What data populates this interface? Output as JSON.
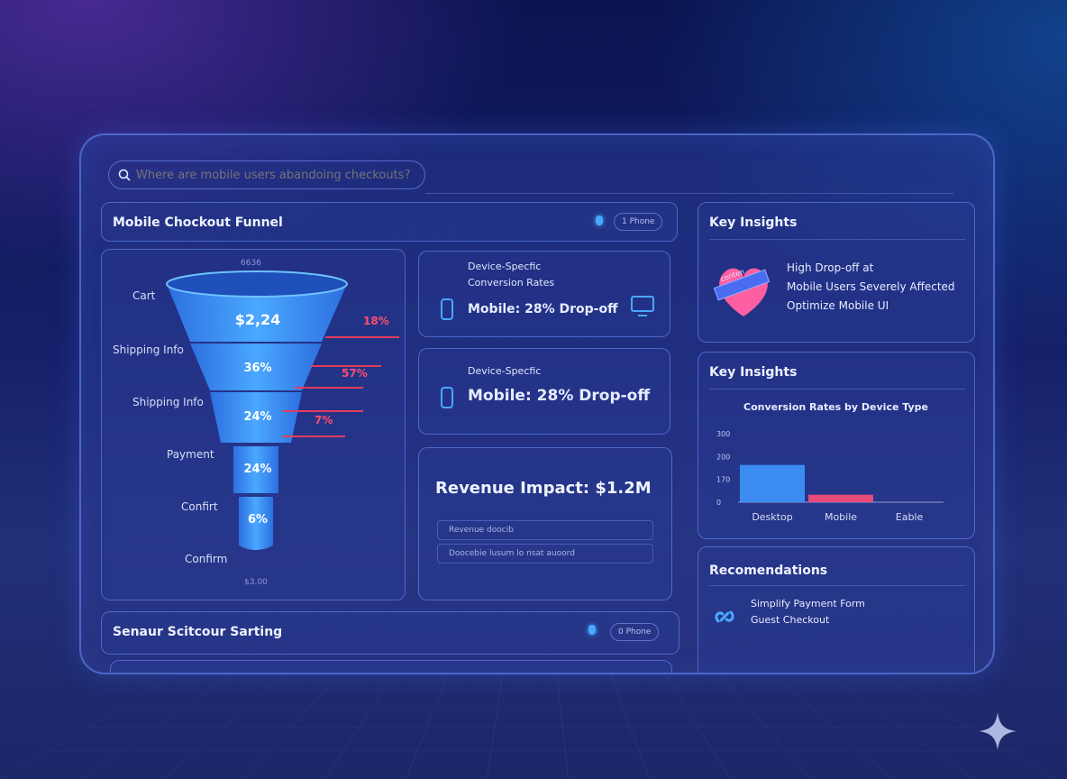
{
  "search": {
    "placeholder": "Where are mobile users abandoing checkouts?"
  },
  "funnel_panel": {
    "title": "Mobile Chockout Funnel",
    "chip": "1 Phone",
    "top_value": "6636",
    "bottom_value": "$3.00",
    "stages": [
      {
        "label": "Cart",
        "value": "$2,24",
        "drop": "18%"
      },
      {
        "label": "Shipping Info",
        "value": "36%",
        "drop": "57%"
      },
      {
        "label": "Shipping Info",
        "value": "24%",
        "drop": "7%"
      },
      {
        "label": "Payment",
        "value": "24%"
      },
      {
        "label": "Confirt",
        "value": "6%"
      },
      {
        "label": "Confirm"
      }
    ]
  },
  "device_card_1": {
    "title_line1": "Device-Specfic",
    "title_line2": "Conversion Rates",
    "stat": "Mobile: 28% Drop-off"
  },
  "device_card_2": {
    "title": "Device-Specfic",
    "stat": "Mobile: 28% Drop-off"
  },
  "revenue_card": {
    "title": "Revenue Impact: $1.2M",
    "rows": [
      "Revenue doocib",
      "Doocebie lusum lo nsat auoord"
    ]
  },
  "insights_1": {
    "title": "Key Insights",
    "badge": "conten",
    "lines": [
      "High Drop-off at",
      "Mobile Users Severely Affected",
      "Optimize Mobile UI"
    ]
  },
  "insights_2": {
    "title": "Key Insights"
  },
  "recommendations": {
    "title": "Recomendations",
    "lines": [
      "Simplify Payment Form",
      "Guest Checkout"
    ]
  },
  "bottom_panel": {
    "title": "Senaur Scitcour Sarting",
    "chip": "0 Phone"
  },
  "chart_data": {
    "type": "bar",
    "title": "Conversion Rates by Device Type",
    "categories": [
      "Desktop",
      "Mobile",
      "Eable"
    ],
    "yticks": [
      "300",
      "200",
      "170",
      "0"
    ],
    "ylim": [
      0,
      300
    ],
    "grid": false,
    "series": [
      {
        "values": [
          200,
          40,
          null
        ],
        "colors": [
          "#3a8cf0",
          "#e84a7a",
          null
        ]
      }
    ]
  },
  "colors": {
    "accent_blue": "#3a8cf0",
    "drop_red": "#ff4d6d",
    "mobile_bar": "#e84a7a"
  }
}
